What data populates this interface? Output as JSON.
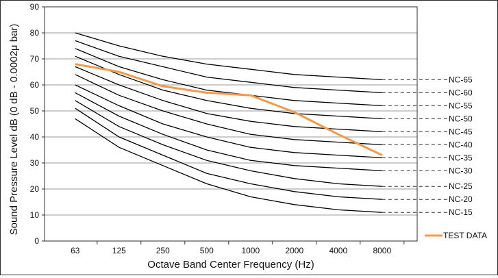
{
  "chart_data": {
    "type": "line",
    "xlabel": "Octave Band Center Frequency (Hz)",
    "ylabel": "Sound Pressure Level dB (0 dB - 0.0002μ bar)",
    "categories": [
      "63",
      "125",
      "250",
      "500",
      "1000",
      "2000",
      "4000",
      "8000"
    ],
    "ylim": [
      0,
      90
    ],
    "yticks": [
      0,
      10,
      20,
      30,
      40,
      50,
      60,
      70,
      80,
      90
    ],
    "grid": "horizontal",
    "legend": "bottom-right",
    "colors": {
      "curve": "#000000",
      "test": "#f29a4a",
      "grid": "#9a9a9a"
    },
    "series": [
      {
        "name": "NC-65",
        "values": [
          80,
          75,
          71,
          68,
          66,
          64,
          63,
          62
        ]
      },
      {
        "name": "NC-60",
        "values": [
          77,
          71,
          67,
          63,
          61,
          59,
          58,
          57
        ]
      },
      {
        "name": "NC-55",
        "values": [
          74,
          67,
          62,
          58,
          56,
          54,
          53,
          52
        ]
      },
      {
        "name": "NC-50",
        "values": [
          71,
          64,
          58,
          54,
          51,
          49,
          48,
          47
        ]
      },
      {
        "name": "NC-45",
        "values": [
          67,
          60,
          54,
          49,
          46,
          44,
          43,
          42
        ]
      },
      {
        "name": "NC-40",
        "values": [
          64,
          56,
          50,
          45,
          41,
          39,
          38,
          37
        ]
      },
      {
        "name": "NC-35",
        "values": [
          60,
          52,
          45,
          40,
          36,
          34,
          33,
          32
        ]
      },
      {
        "name": "NC-30",
        "values": [
          57,
          48,
          41,
          35,
          31,
          29,
          28,
          27
        ]
      },
      {
        "name": "NC-25",
        "values": [
          54,
          44,
          37,
          31,
          27,
          24,
          22,
          21
        ]
      },
      {
        "name": "NC-20",
        "values": [
          51,
          40,
          33,
          26,
          22,
          19,
          17,
          16
        ]
      },
      {
        "name": "NC-15",
        "values": [
          47,
          36,
          29,
          22,
          17,
          14,
          12,
          11
        ]
      }
    ],
    "test_data": {
      "name": "TEST DATA",
      "values": [
        68,
        65,
        59.5,
        57,
        56,
        49.5,
        41,
        33
      ]
    }
  }
}
